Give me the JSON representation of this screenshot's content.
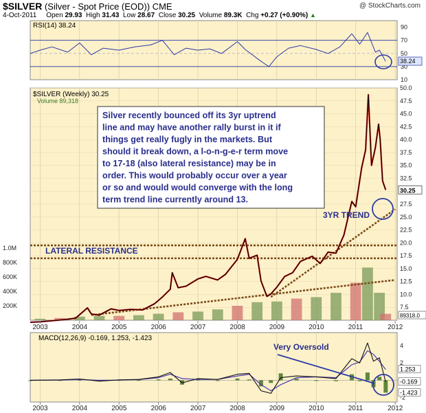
{
  "header": {
    "symbol": "$SILVER",
    "description": "(Silver - Spot Price (EOD))",
    "exchange": "CME",
    "watermark": "@ StockCharts.com",
    "date": "4-Oct-2011",
    "open_label": "Open",
    "open": "29.93",
    "high_label": "High",
    "high": "31.43",
    "low_label": "Low",
    "low": "28.67",
    "close_label": "Close",
    "close": "30.25",
    "volume_label": "Volume",
    "volume": "89.3K",
    "chg_label": "Chg",
    "chg": "+0.27 (+0.90%)",
    "chg_arrow": "▲"
  },
  "colors": {
    "panel_bg": "#fdf1c9",
    "rsi_line": "#2b38a8",
    "price_line": "#000000",
    "price_red": "#cc1111",
    "volume_bar": "#7a9a5a",
    "volume_red": "#d07070",
    "trend_line": "#7a4a18",
    "annotation_text": "#2a2e8c",
    "macd_line": "#111111",
    "signal_line": "#4a3ab0",
    "histogram": "#3b6b1a",
    "circle": "#2b3aa8"
  },
  "chart_data": [
    {
      "type": "line",
      "title": "RSI(14) 38.24",
      "ylim": [
        10,
        100
      ],
      "yticks": [
        "90",
        "70",
        "50",
        "30",
        "10"
      ],
      "reference_lines": [
        70,
        30
      ],
      "last_value_label": "38.24",
      "x": [
        2002.75,
        2003.0,
        2003.3,
        2003.7,
        2004.0,
        2004.3,
        2004.6,
        2005.0,
        2005.4,
        2005.8,
        2006.1,
        2006.4,
        2006.7,
        2007.0,
        2007.3,
        2007.6,
        2008.0,
        2008.2,
        2008.6,
        2008.8,
        2009.0,
        2009.3,
        2009.6,
        2010.0,
        2010.3,
        2010.6,
        2010.9,
        2011.1,
        2011.3,
        2011.5,
        2011.6,
        2011.76
      ],
      "values": [
        50,
        55,
        60,
        52,
        66,
        48,
        58,
        55,
        60,
        63,
        70,
        48,
        58,
        55,
        57,
        50,
        68,
        56,
        38,
        30,
        45,
        58,
        62,
        56,
        50,
        60,
        80,
        64,
        82,
        52,
        55,
        38
      ]
    },
    {
      "type": "line",
      "title": "$SILVER (Weekly) 30.25",
      "ylim": [
        5.0,
        50.0
      ],
      "yticks": [
        "50.0",
        "47.5",
        "45.0",
        "42.5",
        "40.0",
        "37.5",
        "35.0",
        "32.5",
        "30.0",
        "27.5",
        "25.0",
        "22.5",
        "20.0",
        "17.5",
        "15.0",
        "12.5",
        "10.0",
        "7.5"
      ],
      "last_value_label": "30.25",
      "x": [
        2002.75,
        2003.0,
        2003.3,
        2003.6,
        2003.9,
        2004.2,
        2004.3,
        2004.5,
        2004.8,
        2005.0,
        2005.3,
        2005.6,
        2005.9,
        2006.1,
        2006.3,
        2006.35,
        2006.5,
        2006.7,
        2007.0,
        2007.2,
        2007.5,
        2007.7,
        2008.0,
        2008.2,
        2008.3,
        2008.5,
        2008.6,
        2008.75,
        2008.85,
        2009.0,
        2009.2,
        2009.4,
        2009.6,
        2009.9,
        2010.1,
        2010.3,
        2010.5,
        2010.7,
        2010.9,
        2011.0,
        2011.15,
        2011.25,
        2011.32,
        2011.4,
        2011.5,
        2011.58,
        2011.62,
        2011.68,
        2011.76
      ],
      "values": [
        4.6,
        4.7,
        4.9,
        5.1,
        5.4,
        7.4,
        6.2,
        6.0,
        7.2,
        6.9,
        7.1,
        7.0,
        8.2,
        9.5,
        11.0,
        14.2,
        11.3,
        11.6,
        13.0,
        13.5,
        12.8,
        13.9,
        16.8,
        20.8,
        17.0,
        17.6,
        12.6,
        9.6,
        10.1,
        11.4,
        13.5,
        14.2,
        16.4,
        17.4,
        16.0,
        18.2,
        18.0,
        21.5,
        28.0,
        27.0,
        34.5,
        38.0,
        48.7,
        35.0,
        38.5,
        43.0,
        40.0,
        32.0,
        30.25
      ]
    },
    {
      "type": "bar",
      "title": "Volume 89,318",
      "ylim": [
        0,
        1200000
      ],
      "yticks": [
        "1.0M",
        "800K",
        "600K",
        "400K",
        "200K"
      ],
      "last_value_label": "89318.0",
      "x": [
        2003.0,
        2003.5,
        2004.0,
        2004.5,
        2005.0,
        2005.5,
        2006.0,
        2006.5,
        2007.0,
        2007.5,
        2008.0,
        2008.5,
        2009.0,
        2009.5,
        2010.0,
        2010.5,
        2011.0,
        2011.3,
        2011.6,
        2011.76
      ],
      "values": [
        20000,
        30000,
        50000,
        60000,
        60000,
        70000,
        90000,
        110000,
        120000,
        150000,
        200000,
        250000,
        260000,
        300000,
        320000,
        380000,
        520000,
        730000,
        380000,
        89318
      ]
    },
    {
      "type": "line",
      "title": "MACD(12,26,9) -0.169, 1.253, -1.423",
      "ylim": [
        -2.5,
        5.5
      ],
      "yticks": [
        "4",
        "2",
        "0",
        "-2"
      ],
      "value_labels": [
        "1.253",
        "-0.169",
        "-1.423"
      ],
      "series": [
        {
          "name": "MACD",
          "x": [
            2002.75,
            2003.5,
            2004.0,
            2004.5,
            2005.0,
            2005.5,
            2006.0,
            2006.3,
            2006.6,
            2007.0,
            2007.5,
            2008.0,
            2008.3,
            2008.6,
            2008.85,
            2009.1,
            2009.5,
            2010.0,
            2010.5,
            2010.9,
            2011.1,
            2011.3,
            2011.45,
            2011.6,
            2011.76
          ],
          "values": [
            0.0,
            0.05,
            0.15,
            -0.1,
            0.05,
            0.1,
            0.4,
            0.9,
            -0.3,
            0.2,
            0.1,
            0.7,
            0.8,
            -1.2,
            -1.5,
            0.3,
            0.5,
            0.4,
            0.2,
            2.5,
            2.0,
            4.3,
            2.2,
            2.6,
            -0.169
          ]
        },
        {
          "name": "Signal",
          "x": [
            2002.75,
            2003.5,
            2004.0,
            2004.5,
            2005.0,
            2005.5,
            2006.0,
            2006.3,
            2006.6,
            2007.0,
            2007.5,
            2008.0,
            2008.3,
            2008.6,
            2008.85,
            2009.1,
            2009.5,
            2010.0,
            2010.5,
            2010.9,
            2011.1,
            2011.3,
            2011.45,
            2011.6,
            2011.76
          ],
          "values": [
            0.0,
            0.03,
            0.1,
            0.0,
            0.02,
            0.08,
            0.3,
            0.7,
            0.2,
            0.1,
            0.1,
            0.5,
            0.7,
            -0.5,
            -1.2,
            -0.5,
            0.3,
            0.4,
            0.3,
            1.8,
            2.1,
            3.4,
            3.0,
            2.2,
            1.253
          ]
        }
      ]
    }
  ],
  "x_axis": {
    "years": [
      "2003",
      "2004",
      "2005",
      "2006",
      "2007",
      "2008",
      "2009",
      "2010",
      "2011",
      "2012"
    ],
    "year_values": [
      2003,
      2004,
      2005,
      2006,
      2007,
      2008,
      2009,
      2010,
      2011,
      2012
    ]
  },
  "annotations": {
    "main_text_lines": [
      "Silver recently bounced off its 3yr uptrend",
      "line and may have another rally burst in it if",
      "things get really fugly in the markets. But",
      "should it break down, a l-o-n-g-e-r term move",
      "to 17-18 (also lateral resistance) may be in",
      "order. This would probably occur over a year",
      "or so and would would converge with the long",
      "term trend line currently around 13."
    ],
    "trend_label": "3YR TREND",
    "lateral_label": "LATERAL RESISTANCE",
    "oversold_label": "Very Oversold"
  },
  "lines": {
    "lateral_upper": 19.5,
    "lateral_lower": 17.0,
    "long_trend": {
      "x": [
        2004.3,
        2012.0
      ],
      "y": [
        6.0,
        12.8
      ]
    },
    "three_yr_trend": {
      "x": [
        2008.85,
        2012.0
      ],
      "y": [
        9.5,
        26.5
      ]
    }
  }
}
